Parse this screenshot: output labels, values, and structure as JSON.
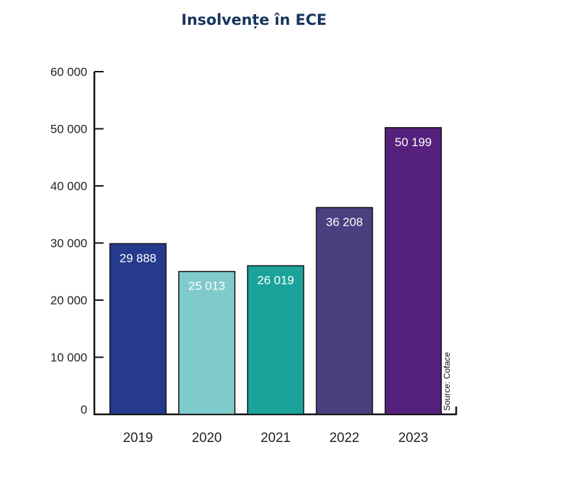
{
  "chart_data": {
    "type": "bar",
    "title": "Insolvențe în ECE",
    "categories": [
      "2019",
      "2020",
      "2021",
      "2022",
      "2023"
    ],
    "values": [
      29888,
      25013,
      26019,
      36208,
      50199
    ],
    "value_labels": [
      "29 888",
      "25 013",
      "26 019",
      "36 208",
      "50 199"
    ],
    "colors": [
      "#253a8c",
      "#7fcbcb",
      "#1ba39b",
      "#4b3f80",
      "#55217c"
    ],
    "ylim": [
      0,
      60000
    ],
    "yticks": [
      0,
      10000,
      20000,
      30000,
      40000,
      50000,
      60000
    ],
    "ytick_labels": [
      "0",
      "10 000",
      "20 000",
      "30 000",
      "40 000",
      "50 000",
      "60 000"
    ],
    "xlabel": "",
    "ylabel": "",
    "grid": false,
    "source": "Source: Coface"
  }
}
